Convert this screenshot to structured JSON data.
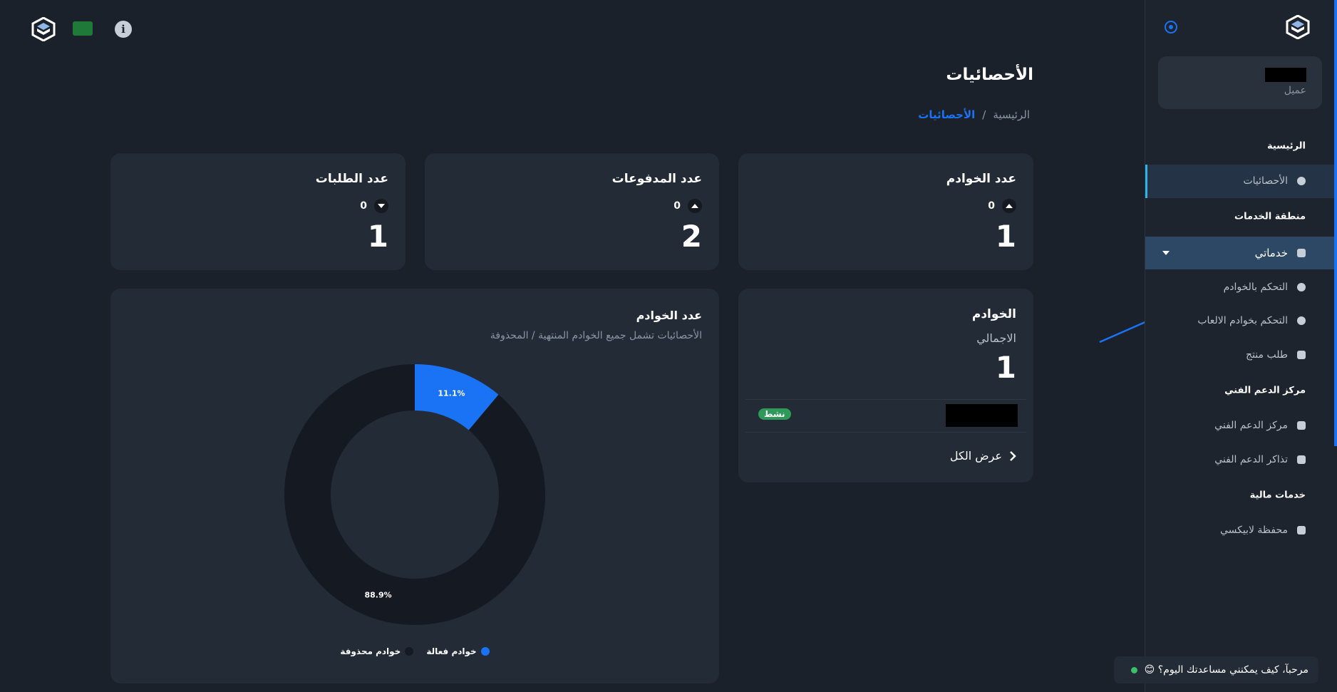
{
  "sidebar": {
    "role": "عميل",
    "menu": [
      "الرئيسية",
      "الأحصائيات",
      "منطقة الخدمات",
      "خدماتي",
      "التحكم بالخوادم",
      "التحكم بخوادم الالعاب",
      "طلب منتج",
      "مركز الدعم الفني",
      "مركز الدعم الفني",
      "تذاكر الدعم الفني",
      "خدمات مالية",
      "محفظة لابيكسي"
    ]
  },
  "header": {
    "title": "الأحصائيات",
    "breadcrumb": [
      "الرئيسية",
      "/",
      "الأحصائيات"
    ]
  },
  "stats": [
    {
      "title": "عدد الخوادم",
      "change": 0,
      "value": 1
    },
    {
      "title": "عدد المدفوعات",
      "change": 0,
      "value": 2
    },
    {
      "title": "عدد الطلبات",
      "change": 0,
      "value": 1
    }
  ],
  "servers": {
    "title": "الخوادم",
    "subtitle": "الاجمالي",
    "total": 1,
    "status": "نشط",
    "link": "عرض الكل"
  },
  "chart_data": {
    "type": "pie",
    "title": "عدد الخوادم",
    "subtitle": "الأحصائيات تشمل جميع الخوادم المنتهية / المحذوفة",
    "categories": [
      "خوادم فعالة",
      "خوادم محذوفة"
    ],
    "values": [
      11.1,
      88.9
    ],
    "value_labels": [
      "11.1%",
      "88.9%"
    ],
    "colors": [
      "#1a73f5",
      "#151a22"
    ]
  },
  "chat": {
    "message": "مرحبآ، كيف يمكنني مساعدتك اليوم؟ 😊"
  }
}
